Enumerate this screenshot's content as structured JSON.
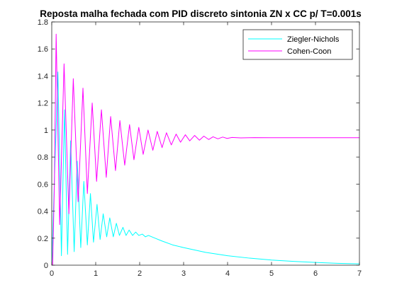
{
  "chart_data": {
    "type": "line",
    "title": "Reposta malha fechada com PID discreto sintonia ZN x CC p/ T=0.001s",
    "xlabel": "",
    "ylabel": "",
    "xlim": [
      0,
      7
    ],
    "ylim": [
      0,
      1.8
    ],
    "xticks": [
      "0",
      "1",
      "2",
      "3",
      "4",
      "5",
      "6",
      "7"
    ],
    "yticks": [
      "0",
      "0.2",
      "0.4",
      "0.6",
      "0.8",
      "1",
      "1.2",
      "1.4",
      "1.6",
      "1.8"
    ],
    "grid": false,
    "legend_position": "top-right",
    "series": [
      {
        "name": "Ziegler-Nichols",
        "color": "#00ffff",
        "x": [
          0,
          0.06,
          0.14,
          0.22,
          0.29,
          0.36,
          0.43,
          0.51,
          0.58,
          0.66,
          0.73,
          0.81,
          0.88,
          0.95,
          1.03,
          1.1,
          1.17,
          1.25,
          1.32,
          1.4,
          1.47,
          1.54,
          1.62,
          1.69,
          1.76,
          1.84,
          1.91,
          1.98,
          2.06,
          2.13,
          2.2,
          2.35,
          2.5,
          2.75,
          3.0,
          3.5,
          4.0,
          4.5,
          5.0,
          5.5,
          6.0,
          6.5,
          7.0
        ],
        "y": [
          0,
          0.62,
          1.43,
          0.07,
          1.15,
          0.08,
          0.92,
          0.1,
          0.77,
          0.13,
          0.62,
          0.15,
          0.53,
          0.17,
          0.45,
          0.19,
          0.38,
          0.21,
          0.35,
          0.21,
          0.31,
          0.22,
          0.28,
          0.22,
          0.26,
          0.22,
          0.245,
          0.22,
          0.23,
          0.21,
          0.22,
          0.2,
          0.18,
          0.15,
          0.13,
          0.095,
          0.07,
          0.052,
          0.038,
          0.028,
          0.02,
          0.014,
          0.01
        ]
      },
      {
        "name": "Cohen-Coon",
        "color": "#ff00ff",
        "x": [
          0,
          0.02,
          0.06,
          0.1,
          0.18,
          0.28,
          0.39,
          0.49,
          0.6,
          0.71,
          0.81,
          0.92,
          1.02,
          1.13,
          1.24,
          1.34,
          1.45,
          1.55,
          1.66,
          1.77,
          1.87,
          1.98,
          2.08,
          2.19,
          2.3,
          2.4,
          2.51,
          2.61,
          2.72,
          2.83,
          2.93,
          3.04,
          3.14,
          3.25,
          3.36,
          3.46,
          3.57,
          3.67,
          3.78,
          3.89,
          3.99,
          4.1,
          4.3,
          4.6,
          5.0,
          5.5,
          6.0,
          7.0
        ],
        "y": [
          0,
          0,
          0.6,
          1.71,
          0.3,
          1.49,
          0.38,
          1.38,
          0.47,
          1.31,
          0.53,
          1.2,
          0.62,
          1.15,
          0.65,
          1.1,
          0.7,
          1.07,
          0.74,
          1.04,
          0.78,
          1.02,
          0.82,
          1.0,
          0.85,
          0.99,
          0.87,
          0.98,
          0.89,
          0.97,
          0.91,
          0.965,
          0.92,
          0.96,
          0.925,
          0.955,
          0.93,
          0.95,
          0.935,
          0.948,
          0.938,
          0.945,
          0.942,
          0.944,
          0.943,
          0.943,
          0.943,
          0.943
        ]
      }
    ]
  }
}
